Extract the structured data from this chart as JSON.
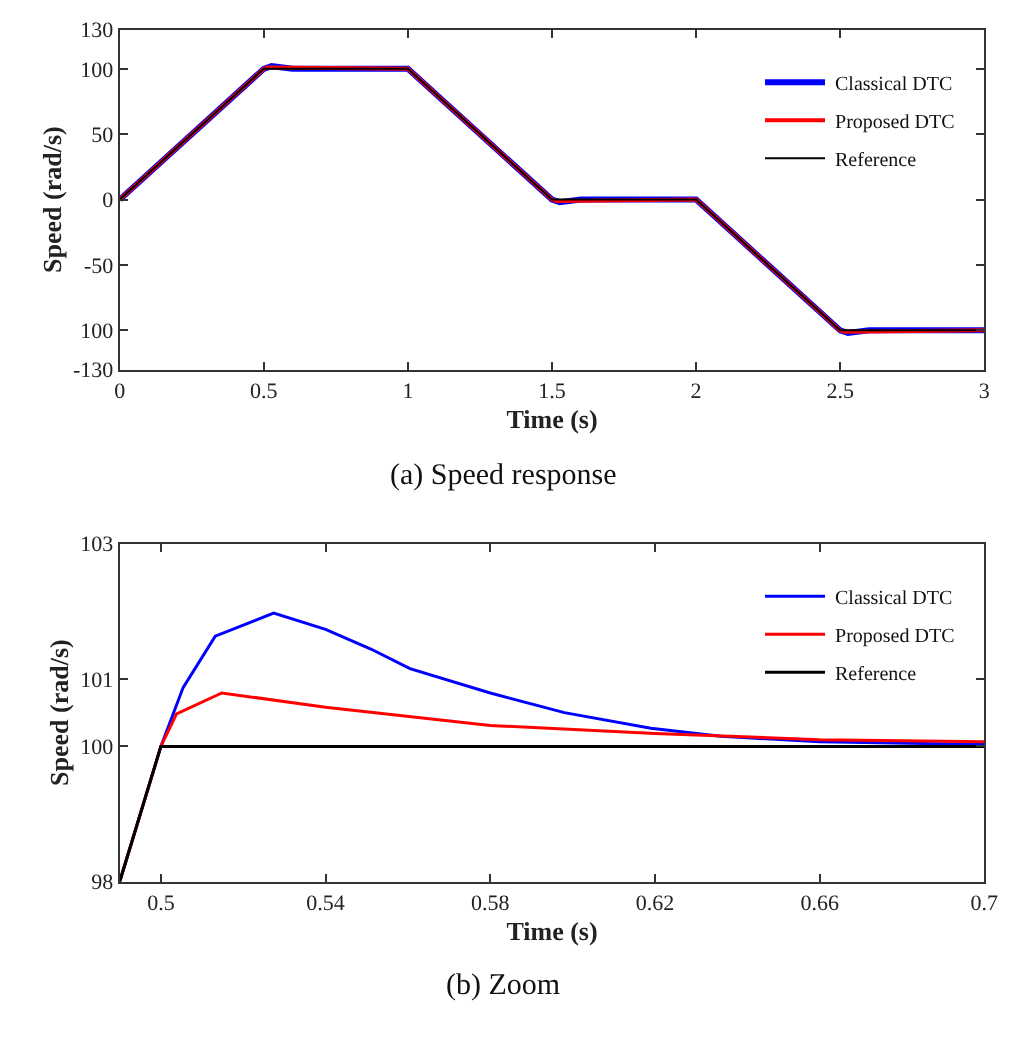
{
  "chart_data": [
    {
      "type": "line",
      "title": "(a) Speed response",
      "xlabel": "Time (s)",
      "ylabel": "Speed (rad/s)",
      "xlim": [
        0,
        3
      ],
      "xticks": [
        0,
        0.5,
        1,
        1.5,
        2,
        2.5,
        3
      ],
      "ylim": [
        -130,
        130
      ],
      "yticks": [
        -130,
        {
          "value": -100,
          "label": "100"
        },
        -50,
        0,
        50,
        100,
        130
      ],
      "legend": "top right",
      "series": [
        {
          "name": "Classical DTC",
          "color": "#0000ff",
          "x": [
            0,
            0.5,
            0.527,
            0.6,
            1,
            1.5,
            1.527,
            1.6,
            2,
            2.5,
            2.527,
            2.6,
            3
          ],
          "values": [
            0,
            100,
            102,
            100,
            100,
            0,
            -2,
            0,
            0,
            -100,
            -102,
            -100,
            -100
          ]
        },
        {
          "name": "Proposed DTC",
          "color": "#ff0000",
          "x": [
            0,
            0.5,
            0.515,
            1,
            1.5,
            1.515,
            2,
            2.5,
            2.515,
            3
          ],
          "values": [
            0,
            100,
            101,
            100,
            0,
            -1,
            0,
            -100,
            -101,
            -100
          ]
        },
        {
          "name": "Reference",
          "color": "#000000",
          "x": [
            0,
            0.5,
            1,
            1.5,
            2,
            2.5,
            3
          ],
          "values": [
            0,
            100,
            100,
            0,
            0,
            -100,
            -100
          ]
        }
      ]
    },
    {
      "type": "line",
      "title": "(b) Zoom",
      "xlabel": "Time (s)",
      "ylabel": "Speed (rad/s)",
      "xlim": [
        0.49,
        0.7
      ],
      "xticks": [
        0.5,
        0.54,
        0.58,
        0.62,
        0.66,
        0.7
      ],
      "ylim": [
        98,
        103
      ],
      "yticks": [
        98,
        100,
        101,
        103
      ],
      "legend": "top right",
      "series": [
        {
          "name": "Classical DTC",
          "color": "#0000ff",
          "x": [
            0.49,
            0.5,
            0.5054,
            0.5132,
            0.5274,
            0.54,
            0.551,
            0.5605,
            0.58,
            0.598,
            0.619,
            0.636,
            0.66,
            0.7
          ],
          "values": [
            98,
            100,
            100.87,
            101.63,
            101.97,
            101.73,
            101.44,
            101.15,
            100.79,
            100.5,
            100.27,
            100.15,
            100.07,
            100.03
          ]
        },
        {
          "name": "Proposed DTC",
          "color": "#ff0000",
          "x": [
            0.49,
            0.5,
            0.5038,
            0.5148,
            0.54,
            0.58,
            0.62,
            0.66,
            0.7
          ],
          "values": [
            98,
            100,
            100.48,
            100.79,
            100.58,
            100.31,
            100.19,
            100.1,
            100.07
          ]
        },
        {
          "name": "Reference",
          "color": "#000000",
          "x": [
            0.49,
            0.5,
            0.7
          ],
          "values": [
            98,
            100,
            100
          ]
        }
      ]
    }
  ]
}
